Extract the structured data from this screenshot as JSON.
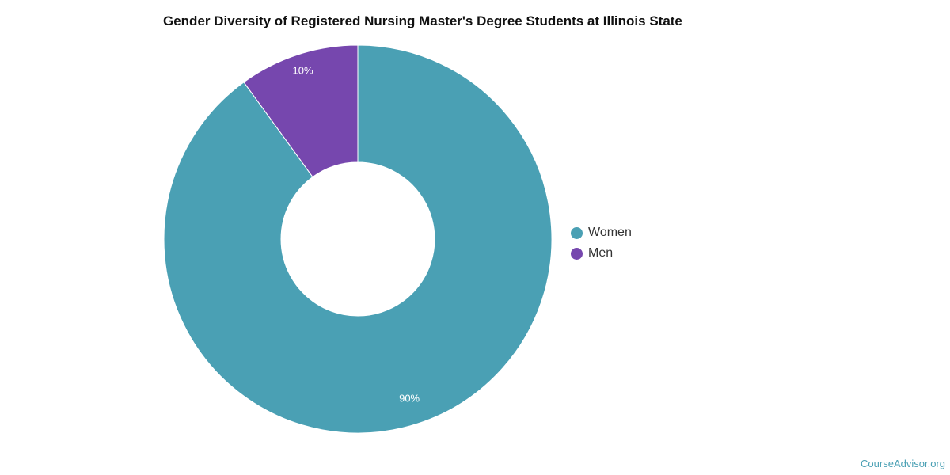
{
  "chart_data": {
    "type": "pie",
    "donut": true,
    "title": "Gender Diversity of Registered Nursing Master's Degree Students at Illinois State",
    "categories": [
      "Women",
      "Men"
    ],
    "values": [
      90,
      10
    ],
    "labels": [
      "90%",
      "10%"
    ],
    "colors": [
      "#4aa0b4",
      "#7647ae"
    ],
    "legend_position": "right"
  },
  "watermark": "CourseAdvisor.org"
}
